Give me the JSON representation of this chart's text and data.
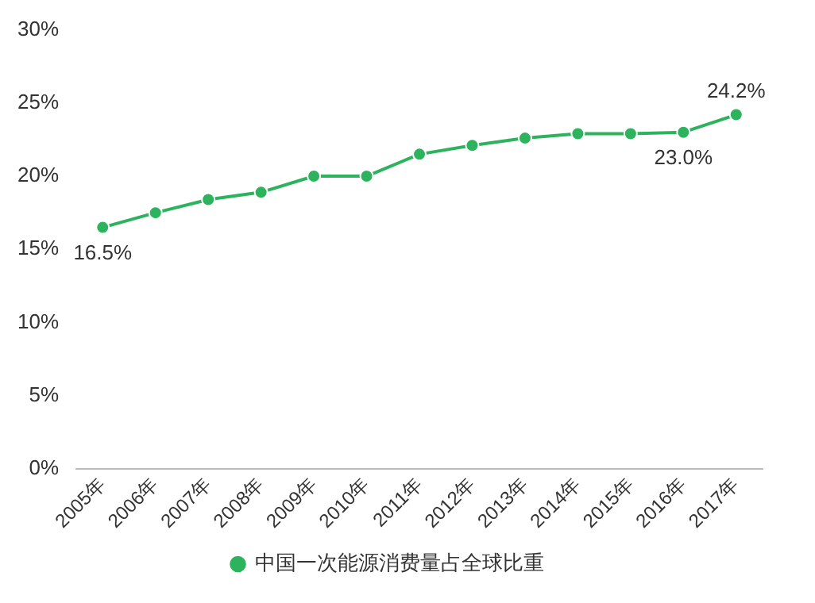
{
  "chart_data": {
    "type": "line",
    "categories": [
      "2005年",
      "2006年",
      "2007年",
      "2008年",
      "2009年",
      "2010年",
      "2011年",
      "2012年",
      "2013年",
      "2014年",
      "2015年",
      "2016年",
      "2017年"
    ],
    "series": [
      {
        "name": "中国一次能源消费量占全球比重",
        "color": "#2db35d",
        "values": [
          16.5,
          17.5,
          18.4,
          18.9,
          20.0,
          20.0,
          21.5,
          22.1,
          22.6,
          22.9,
          22.9,
          23.0,
          24.2
        ],
        "value_labels": [
          "16.5%",
          null,
          null,
          null,
          null,
          null,
          null,
          null,
          null,
          null,
          null,
          "23.0%",
          "24.2%"
        ]
      }
    ],
    "ylim": [
      0,
      30
    ],
    "yticks": [
      {
        "value": 0,
        "label": "0%"
      },
      {
        "value": 5,
        "label": "5%"
      },
      {
        "value": 10,
        "label": "10%"
      },
      {
        "value": 15,
        "label": "15%"
      },
      {
        "value": 20,
        "label": "20%"
      },
      {
        "value": 25,
        "label": "25%"
      },
      {
        "value": 30,
        "label": "30%"
      }
    ],
    "grid": false,
    "legend": "bottom",
    "marker": "circle",
    "line_style": "solid"
  }
}
